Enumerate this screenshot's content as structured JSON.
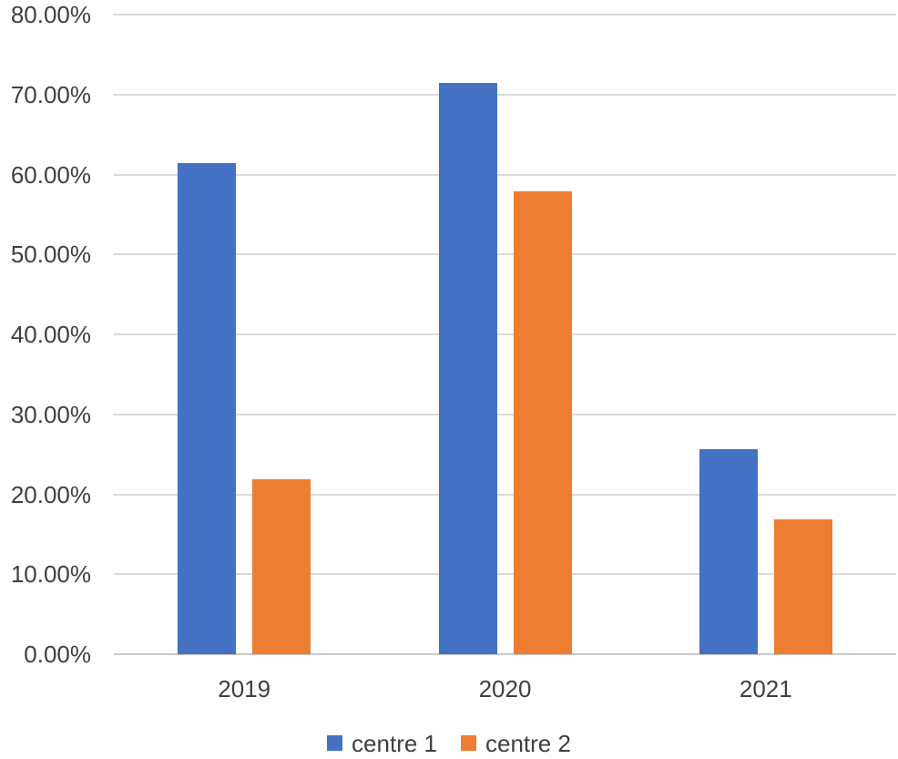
{
  "chart_data": {
    "type": "bar",
    "title": "",
    "xlabel": "",
    "ylabel": "",
    "unit": "percent",
    "categories": [
      "2019",
      "2020",
      "2021"
    ],
    "series": [
      {
        "name": "centre 1",
        "color": "#4472C4",
        "values": [
          61.4,
          71.5,
          25.6
        ]
      },
      {
        "name": "centre 2",
        "color": "#ED7D31",
        "values": [
          21.9,
          57.9,
          16.9
        ]
      }
    ],
    "ylim": [
      0,
      80
    ],
    "ytick_values": [
      0,
      10,
      20,
      30,
      40,
      50,
      60,
      70,
      80
    ],
    "ytick_labels": [
      "0.00%",
      "10.00%",
      "20.00%",
      "30.00%",
      "40.00%",
      "50.00%",
      "60.00%",
      "70.00%",
      "80.00%"
    ],
    "grid": true,
    "legend_position": "bottom",
    "colors": {
      "gridline": "#DADADA",
      "axis_line": "#C9C9C9",
      "text": "#3F3F3F",
      "background": "#FFFFFF"
    }
  }
}
